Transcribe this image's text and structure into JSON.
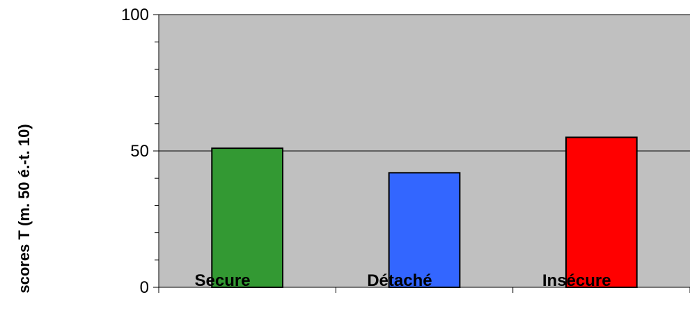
{
  "chart_data": {
    "type": "bar",
    "title": "",
    "xlabel": "",
    "ylabel": "scores T (m. 50 é.-t. 10)",
    "categories": [
      "Secure",
      "Détaché",
      "Insécure"
    ],
    "values": [
      51,
      42,
      55
    ],
    "bar_colors": [
      "#339933",
      "#3366FF",
      "#FF0000"
    ],
    "ylim": [
      0,
      100
    ],
    "y_major_ticks": [
      0,
      50,
      100
    ],
    "y_minor_step": 10,
    "grid": "major-y",
    "legend": "none",
    "plot_background": "#C0C0C0"
  }
}
